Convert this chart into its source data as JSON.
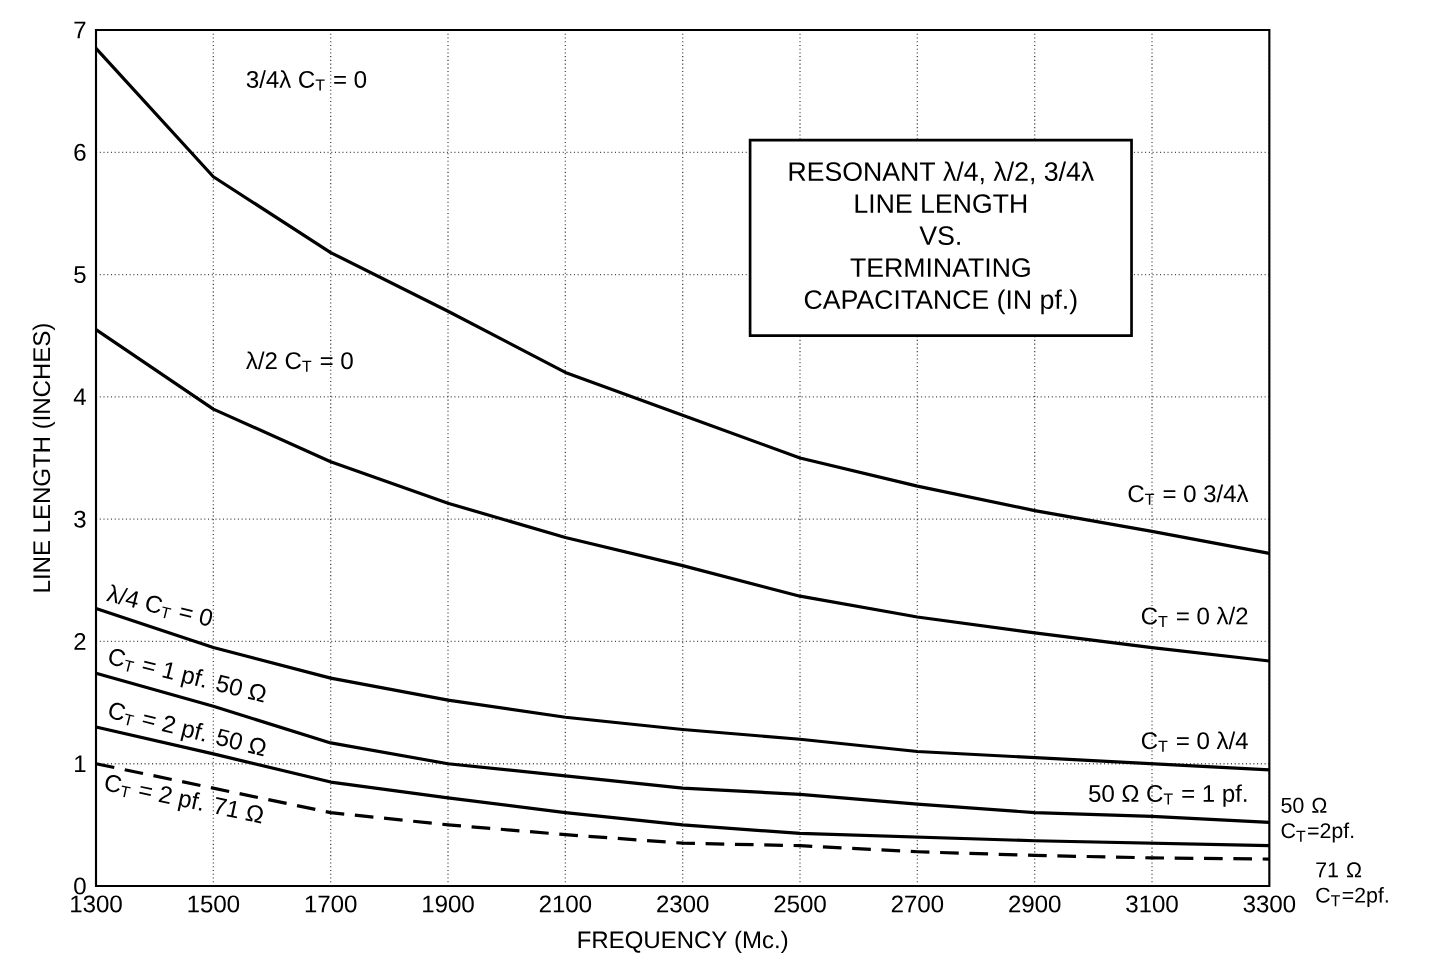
{
  "chart_data": {
    "type": "line",
    "x": [
      1300,
      1500,
      1700,
      1900,
      2100,
      2300,
      2500,
      2700,
      2900,
      3100,
      3300
    ],
    "series": [
      {
        "name": "C$_{T}$ = 0 3/4λ",
        "color": "#000000",
        "line_style": "solid",
        "values": [
          6.85,
          5.8,
          5.18,
          4.7,
          4.2,
          3.85,
          3.5,
          3.27,
          3.07,
          2.9,
          2.72
        ]
      },
      {
        "name": "C$_{T}$ = 0 λ/2",
        "color": "#000000",
        "line_style": "solid",
        "values": [
          4.55,
          3.9,
          3.47,
          3.13,
          2.85,
          2.62,
          2.37,
          2.2,
          2.07,
          1.95,
          1.84
        ]
      },
      {
        "name": "C$_{T}$ = 0 λ/4",
        "color": "#000000",
        "line_style": "solid",
        "values": [
          2.27,
          1.95,
          1.7,
          1.52,
          1.38,
          1.28,
          1.2,
          1.1,
          1.05,
          1.0,
          0.95
        ]
      },
      {
        "name": "50 Ω C$_{T}$ = 1 pf.",
        "color": "#000000",
        "line_style": "solid",
        "values": [
          1.74,
          1.47,
          1.17,
          1.0,
          0.9,
          0.8,
          0.75,
          0.67,
          0.6,
          0.57,
          0.52
        ]
      },
      {
        "name": "50 Ω C$_{T}$=2pf.",
        "color": "#000000",
        "line_style": "solid",
        "values": [
          1.3,
          1.08,
          0.85,
          0.72,
          0.6,
          0.5,
          0.43,
          0.4,
          0.37,
          0.35,
          0.33
        ]
      },
      {
        "name": "71 Ω C$_{T}$=2pf.",
        "color": "#000000",
        "line_style": "dashed",
        "values": [
          1.0,
          0.8,
          0.6,
          0.5,
          0.42,
          0.35,
          0.33,
          0.28,
          0.25,
          0.23,
          0.22
        ]
      }
    ],
    "xlabel": "FREQUENCY (Mc.)",
    "ylabel": "LINE LENGTH (INCHES)",
    "xlim": [
      1300,
      3300
    ],
    "xticks": [
      1300,
      1500,
      1700,
      1900,
      2100,
      2300,
      2500,
      2700,
      2900,
      3100,
      3300
    ],
    "ylim": [
      0,
      7
    ],
    "yticks": [
      0,
      1,
      2,
      3,
      4,
      5,
      6,
      7
    ],
    "grid": true,
    "legend": false,
    "marker": "none",
    "annotations": [
      "RESONANT λ/4, λ/2, 3/4λ",
      "LINE LENGTH",
      "VS.",
      "TERMINATING",
      "CAPACITANCE (IN pf.)",
      "3/4λ C$_{T}$ = 0",
      "λ/2 C$_{T}$ = 0",
      "λ/4 C$_{T}$ = 0",
      "C$_{T}$ = 1 pf. 50 Ω",
      "C$_{T}$ = 2 pf. 50 Ω",
      "C$_{T}$ = 2 pf. 71 Ω"
    ]
  }
}
